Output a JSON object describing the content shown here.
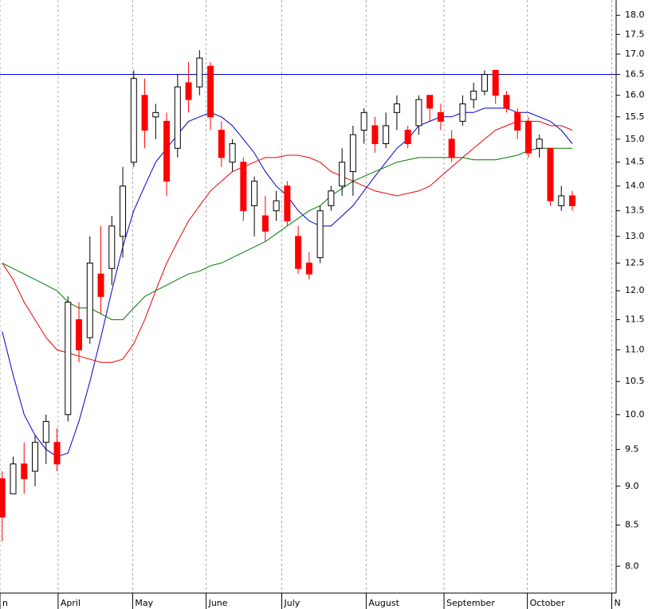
{
  "chart_data": {
    "type": "candlestick",
    "log_scale": true,
    "grid": true,
    "x": [
      0,
      1,
      2,
      3,
      4,
      5,
      6,
      7,
      8,
      9,
      10,
      11,
      12,
      13,
      14,
      15,
      16,
      17,
      18,
      19,
      20,
      21,
      22,
      23,
      24,
      25,
      26,
      27,
      28,
      29,
      30,
      31,
      32,
      33,
      34,
      35,
      36,
      37,
      38,
      39,
      40,
      41,
      42,
      43,
      44,
      45,
      46,
      47,
      48,
      49,
      50,
      51,
      52
    ],
    "open": [
      9.1,
      8.9,
      9.3,
      9.2,
      9.6,
      9.6,
      10.0,
      11.5,
      11.2,
      12.3,
      12.4,
      13.0,
      14.5,
      16.0,
      15.5,
      15.4,
      14.8,
      16.3,
      16.2,
      16.7,
      15.2,
      14.5,
      14.5,
      13.6,
      13.4,
      13.5,
      14.0,
      13.0,
      12.5,
      12.6,
      13.6,
      14.0,
      14.3,
      15.2,
      15.3,
      14.9,
      15.6,
      15.2,
      15.3,
      16.0,
      15.6,
      15.0,
      15.4,
      15.9,
      16.1,
      16.6,
      16.0,
      15.6,
      15.4,
      14.8,
      14.8,
      13.6,
      13.8
    ],
    "high": [
      9.2,
      9.4,
      9.6,
      9.7,
      10.0,
      9.8,
      11.9,
      11.8,
      13.0,
      13.2,
      13.4,
      14.4,
      16.6,
      16.4,
      15.8,
      15.6,
      16.5,
      16.8,
      17.1,
      16.8,
      15.4,
      15.0,
      14.6,
      14.2,
      13.8,
      13.9,
      14.1,
      13.2,
      12.7,
      13.6,
      14.0,
      14.8,
      15.3,
      15.7,
      15.5,
      15.6,
      16.0,
      15.3,
      16.0,
      16.0,
      15.8,
      15.2,
      16.0,
      16.3,
      16.6,
      16.6,
      16.1,
      15.7,
      15.5,
      15.1,
      14.8,
      14.0,
      13.9
    ],
    "low": [
      8.3,
      8.9,
      8.9,
      9.0,
      9.3,
      9.2,
      9.9,
      10.8,
      11.1,
      11.6,
      12.1,
      12.6,
      14.4,
      14.8,
      15.0,
      13.8,
      14.6,
      15.6,
      16.0,
      15.2,
      14.4,
      14.3,
      13.3,
      13.0,
      12.9,
      13.3,
      13.2,
      12.3,
      12.2,
      12.5,
      13.5,
      13.8,
      13.8,
      14.9,
      14.7,
      14.8,
      15.2,
      14.8,
      15.1,
      15.4,
      15.2,
      14.5,
      15.3,
      15.7,
      16.0,
      15.8,
      15.6,
      15.0,
      14.6,
      14.6,
      13.6,
      13.5,
      13.5
    ],
    "close": [
      8.6,
      9.3,
      9.1,
      9.6,
      9.9,
      9.3,
      11.8,
      11.0,
      12.5,
      11.9,
      13.2,
      14.0,
      16.4,
      15.2,
      15.6,
      14.1,
      16.2,
      15.9,
      16.9,
      15.5,
      14.6,
      14.9,
      13.5,
      14.1,
      13.1,
      13.7,
      13.3,
      12.4,
      12.3,
      13.5,
      13.9,
      14.5,
      15.1,
      15.6,
      14.9,
      15.3,
      15.8,
      14.9,
      15.9,
      15.7,
      15.4,
      14.6,
      15.8,
      16.1,
      16.5,
      16.0,
      15.7,
      15.2,
      14.7,
      15.0,
      13.7,
      13.8,
      13.6
    ],
    "up_color": "#ffffff",
    "down_color": "#ff0000",
    "series": [
      {
        "color": "#0000cc",
        "values": [
          11.3,
          10.6,
          10.0,
          9.7,
          9.5,
          9.4,
          9.45,
          9.9,
          10.5,
          11.2,
          12.0,
          12.8,
          13.5,
          14.0,
          14.5,
          14.8,
          15.1,
          15.4,
          15.5,
          15.6,
          15.5,
          15.3,
          15.0,
          14.7,
          14.3,
          14.0,
          13.8,
          13.5,
          13.3,
          13.2,
          13.2,
          13.4,
          13.6,
          13.9,
          14.2,
          14.5,
          14.8,
          15.0,
          15.3,
          15.4,
          15.5,
          15.5,
          15.6,
          15.6,
          15.7,
          15.7,
          15.7,
          15.6,
          15.6,
          15.5,
          15.4,
          15.2,
          14.9
        ]
      },
      {
        "color": "#ee0000",
        "values": [
          12.5,
          12.2,
          11.8,
          11.5,
          11.2,
          11.0,
          10.95,
          10.9,
          10.85,
          10.8,
          10.8,
          10.85,
          11.1,
          11.5,
          12.0,
          12.5,
          12.9,
          13.3,
          13.6,
          13.9,
          14.1,
          14.3,
          14.4,
          14.5,
          14.6,
          14.6,
          14.65,
          14.65,
          14.6,
          14.5,
          14.3,
          14.2,
          14.1,
          14.0,
          13.9,
          13.85,
          13.8,
          13.85,
          13.9,
          14.0,
          14.2,
          14.4,
          14.6,
          14.8,
          15.0,
          15.2,
          15.3,
          15.4,
          15.4,
          15.4,
          15.3,
          15.3,
          15.2
        ]
      },
      {
        "color": "#007700",
        "values": [
          12.5,
          12.4,
          12.3,
          12.2,
          12.1,
          12.0,
          11.8,
          11.7,
          11.7,
          11.6,
          11.5,
          11.5,
          11.7,
          11.9,
          12.0,
          12.1,
          12.2,
          12.3,
          12.35,
          12.45,
          12.5,
          12.6,
          12.7,
          12.8,
          12.9,
          13.05,
          13.2,
          13.35,
          13.5,
          13.6,
          13.8,
          13.95,
          14.1,
          14.2,
          14.3,
          14.4,
          14.5,
          14.55,
          14.6,
          14.6,
          14.6,
          14.6,
          14.6,
          14.55,
          14.55,
          14.55,
          14.6,
          14.65,
          14.75,
          14.8,
          14.8,
          14.8,
          14.8
        ]
      }
    ],
    "reference_line": 16.5,
    "reference_color": "#0000cc",
    "xlim": [
      -0.2,
      56
    ],
    "xticks": [
      {
        "value": -0.2,
        "label": "n"
      },
      {
        "value": 5.1,
        "label": "April"
      },
      {
        "value": 11.9,
        "label": "May"
      },
      {
        "value": 18.6,
        "label": "June"
      },
      {
        "value": 25.5,
        "label": "July"
      },
      {
        "value": 33.2,
        "label": "August"
      },
      {
        "value": 40.3,
        "label": "September"
      },
      {
        "value": 47.9,
        "label": "October"
      },
      {
        "value": 55.6,
        "label": "N"
      }
    ],
    "ylim": [
      7.69,
      18.41
    ],
    "yticks": [
      {
        "value": 8,
        "label": "8.0"
      },
      {
        "value": 8.5,
        "label": "8.5"
      },
      {
        "value": 9,
        "label": "9.0"
      },
      {
        "value": 9.5,
        "label": "9.5"
      },
      {
        "value": 10,
        "label": "10.0"
      },
      {
        "value": 10.5,
        "label": "10.5"
      },
      {
        "value": 11,
        "label": "11.0"
      },
      {
        "value": 11.5,
        "label": "11.5"
      },
      {
        "value": 12,
        "label": "12.0"
      },
      {
        "value": 12.5,
        "label": "12.5"
      },
      {
        "value": 13,
        "label": "13.0"
      },
      {
        "value": 13.5,
        "label": "13.5"
      },
      {
        "value": 14,
        "label": "14.0"
      },
      {
        "value": 14.5,
        "label": "14.5"
      },
      {
        "value": 15,
        "label": "15.0"
      },
      {
        "value": 15.5,
        "label": "15.5"
      },
      {
        "value": 16,
        "label": "16.0"
      },
      {
        "value": 16.5,
        "label": "16.5"
      },
      {
        "value": 17,
        "label": "17.0"
      },
      {
        "value": 17.5,
        "label": "17.5"
      },
      {
        "value": 18,
        "label": "18.0"
      }
    ]
  }
}
